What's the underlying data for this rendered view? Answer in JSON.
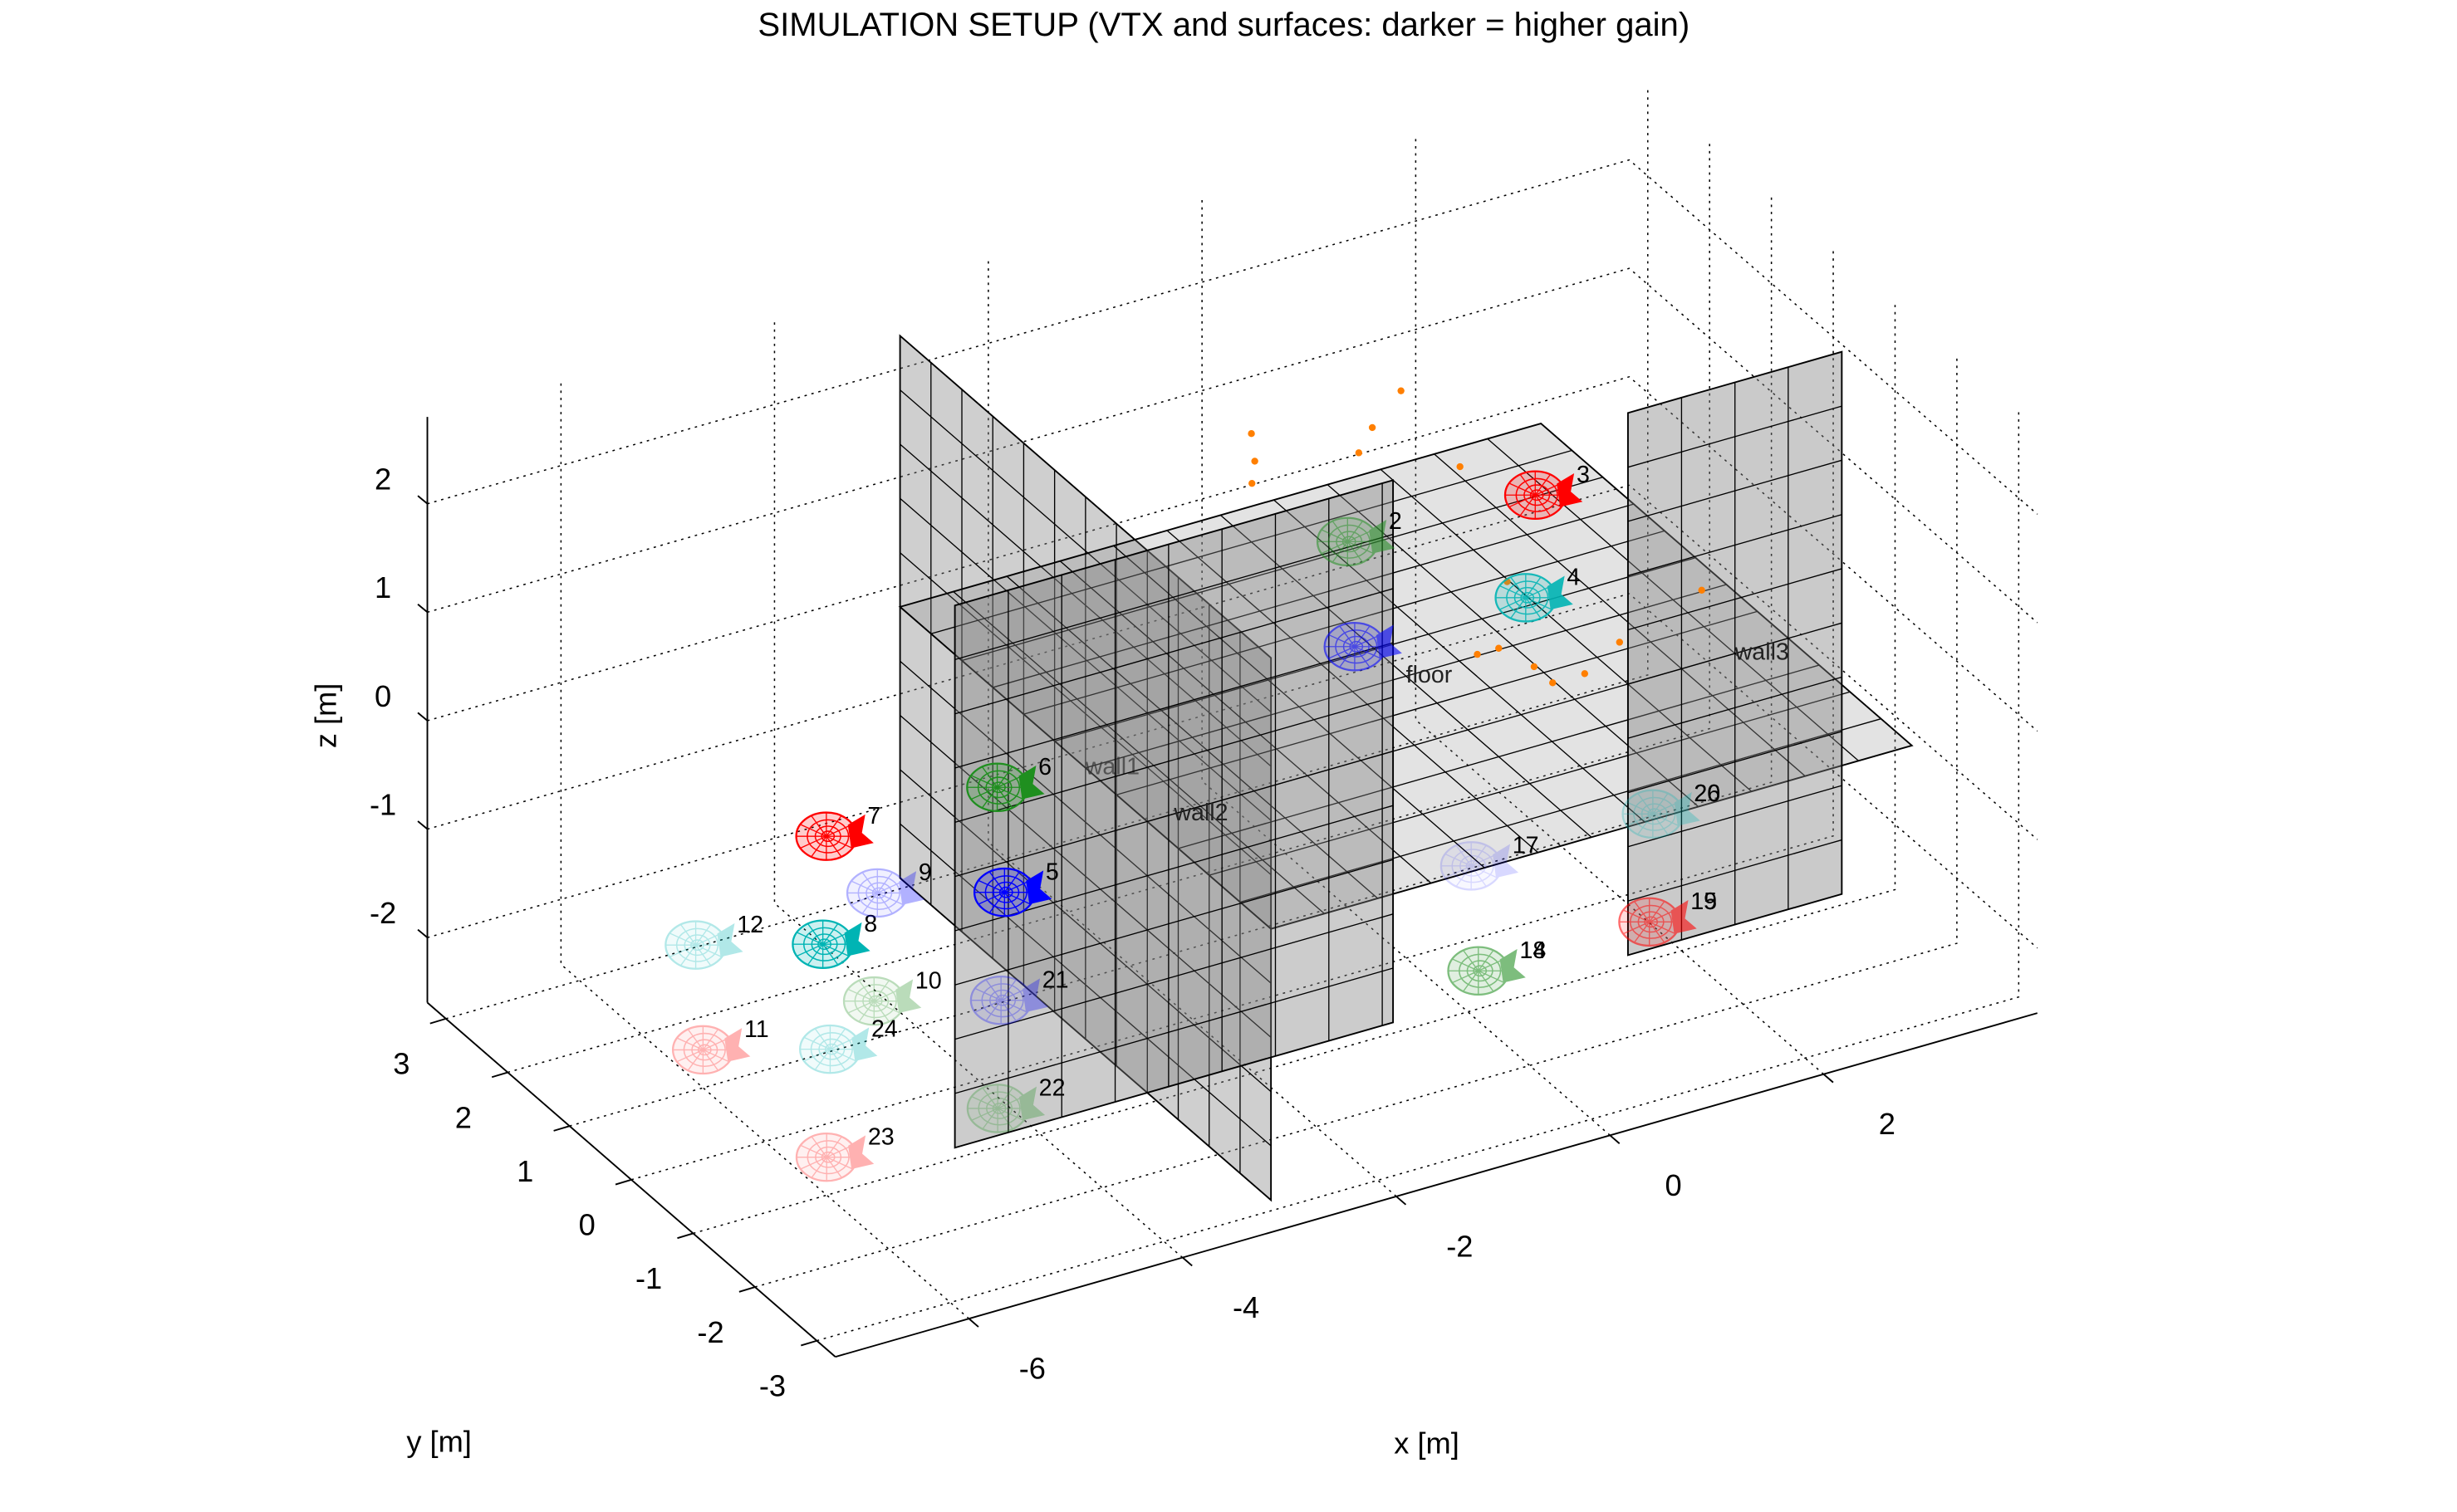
{
  "chart_data": {
    "type": "scene3d",
    "title": "SIMULATION SETUP (VTX and surfaces: darker = higher gain)",
    "xlabel": "x [m]",
    "ylabel": "y [m]",
    "zlabel": "z [m]",
    "xlim": [
      -7.25,
      4
    ],
    "ylim": [
      -3.3,
      3.3
    ],
    "zlim": [
      -2.6,
      2.8
    ],
    "xticks": [
      -6,
      -4,
      -2,
      0,
      2
    ],
    "yticks": [
      -3,
      -2,
      -1,
      0,
      1,
      2,
      3
    ],
    "zticks": [
      -2,
      -1,
      0,
      1,
      2
    ],
    "grid": true,
    "surfaces": [
      {
        "name": "wall1",
        "x": [
          -3,
          -3
        ],
        "y": [
          -3,
          3
        ],
        "z": [
          -2.5,
          2.5
        ],
        "gain": 0.38
      },
      {
        "name": "floor",
        "x": [
          -3,
          3
        ],
        "y": [
          -3,
          3
        ],
        "z": [
          0,
          0
        ],
        "gain": 0.22
      },
      {
        "name": "wall3",
        "x": [
          1.5,
          3.5
        ],
        "y": [
          -1,
          -1
        ],
        "z": [
          -2.5,
          2.5
        ],
        "gain": 0.42
      },
      {
        "name": "wall2",
        "x": [
          -4.8,
          -0.7
        ],
        "y": [
          -1,
          -1
        ],
        "z": [
          -2.5,
          2.5
        ],
        "gain": 0.4
      }
    ],
    "points": {
      "color": "#ff7f00",
      "x": [
        0.0,
        -0.2,
        -0.4,
        0.6,
        0.9,
        1.4,
        1.2,
        0.6,
        -0.2,
        0.0,
        0.1,
        0.1,
        0.4,
        0.9,
        1.9
      ],
      "y": [
        2.5,
        2.1,
        1.8,
        1.8,
        2.1,
        2.5,
        1.2,
        -0.6,
        -1.5,
        -1.5,
        -1.9,
        -2.2,
        -2.2,
        -1.9,
        -1.5
      ],
      "z": [
        1,
        1,
        1,
        1,
        1,
        1,
        1,
        1,
        1,
        1,
        1,
        1,
        1,
        1,
        1
      ]
    },
    "transmitters": [
      {
        "x": -1.0,
        "y": -0.9,
        "z": 1,
        "color": "#0000ff",
        "gain": 0.6
      },
      {
        "label": "2",
        "x": -0.2,
        "y": 0.6,
        "z": 1,
        "color": "#1f8f1f",
        "gain": 0.55
      },
      {
        "label": "3",
        "x": 1.5,
        "y": 0.5,
        "z": 1,
        "color": "#ff0000",
        "gain": 1
      },
      {
        "label": "4",
        "x": 0.6,
        "y": -0.9,
        "z": 1,
        "color": "#00b4b4",
        "gain": 0.9
      },
      {
        "label": "5",
        "x": -3.7,
        "y": 0.1,
        "z": -1,
        "color": "#0000ff",
        "gain": 1
      },
      {
        "label": "6",
        "x": -2.9,
        "y": 1.6,
        "z": -1,
        "color": "#1f8f1f",
        "gain": 1
      },
      {
        "label": "7",
        "x": -4.5,
        "y": 1.6,
        "z": -1,
        "color": "#ff0000",
        "gain": 1
      },
      {
        "label": "8",
        "x": -5.4,
        "y": 0.1,
        "z": -1,
        "color": "#00b4b4",
        "gain": 1
      },
      {
        "label": "9",
        "x": -4.6,
        "y": 0.6,
        "z": -1,
        "color": "#0000ff",
        "gain": 0.3
      },
      {
        "label": "10",
        "x": -5.5,
        "y": -0.9,
        "z": -1,
        "color": "#1f8f1f",
        "gain": 0.3
      },
      {
        "label": "11",
        "x": -7.1,
        "y": -0.9,
        "z": -1,
        "color": "#ff0000",
        "gain": 0.3
      },
      {
        "label": "12",
        "x": -6.3,
        "y": 0.6,
        "z": -1,
        "color": "#00b4b4",
        "gain": 0.3
      },
      {
        "label": "14",
        "x": -1.0,
        "y": -2.9,
        "z": -1,
        "color": "#1f8f1f",
        "gain": 0.35
      },
      {
        "label": "15",
        "x": 0.6,
        "y": -2.9,
        "z": -1,
        "color": "#ff0000",
        "gain": 0.35
      },
      {
        "label": "17",
        "x": -0.2,
        "y": -1.4,
        "z": -1,
        "color": "#0000ff",
        "gain": 0.15
      },
      {
        "label": "18",
        "x": -1.0,
        "y": -2.9,
        "z": -1,
        "color": "#1f8f1f",
        "gain": 0.35
      },
      {
        "label": "19",
        "x": 0.6,
        "y": -2.9,
        "z": -1,
        "color": "#ff0000",
        "gain": 0.35
      },
      {
        "label": "20",
        "x": 1.5,
        "y": -1.4,
        "z": -1,
        "color": "#00b4b4",
        "gain": 0.15
      },
      {
        "label": "21",
        "x": -4.6,
        "y": -1.4,
        "z": -1,
        "color": "#0000ff",
        "gain": 0.3
      },
      {
        "label": "22",
        "x": -5.5,
        "y": -2.9,
        "z": -1,
        "color": "#1f8f1f",
        "gain": 0.3
      },
      {
        "label": "23",
        "x": -7.1,
        "y": -2.9,
        "z": -1,
        "color": "#ff0000",
        "gain": 0.3
      },
      {
        "label": "24",
        "x": -6.2,
        "y": -1.4,
        "z": -1,
        "color": "#00b4b4",
        "gain": 0.3
      },
      {
        "label": "26",
        "x": 1.5,
        "y": -1.4,
        "z": -1,
        "color": "#00b4b4",
        "gain": 0.15
      }
    ]
  }
}
